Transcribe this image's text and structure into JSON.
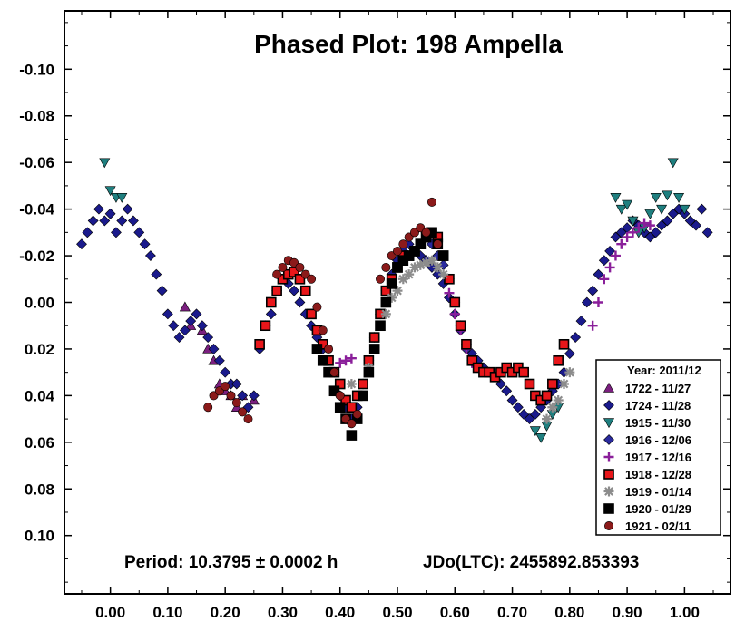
{
  "chart_data": {
    "type": "scatter",
    "title": "Phased Plot: 198 Ampella",
    "xlabel": "",
    "ylabel": "",
    "xlim": [
      -0.08,
      1.08
    ],
    "ylim": [
      -0.125,
      0.125
    ],
    "y_inverted": true,
    "grid": false,
    "x_ticks": [
      "0.00",
      "0.10",
      "0.20",
      "0.30",
      "0.40",
      "0.50",
      "0.60",
      "0.70",
      "0.80",
      "0.90",
      "1.00"
    ],
    "x_tick_values": [
      0.0,
      0.1,
      0.2,
      0.3,
      0.4,
      0.5,
      0.6,
      0.7,
      0.8,
      0.9,
      1.0
    ],
    "y_ticks": [
      "-0.10",
      "-0.08",
      "-0.06",
      "-0.04",
      "-0.02",
      "0.00",
      "0.02",
      "0.04",
      "0.06",
      "0.08",
      "0.10"
    ],
    "y_tick_values": [
      -0.1,
      -0.08,
      -0.06,
      -0.04,
      -0.02,
      0.0,
      0.02,
      0.04,
      0.06,
      0.08,
      0.1
    ],
    "annotations": {
      "period": "Period: 10.3795 ± 0.0002 h",
      "epoch": "JDo(LTC): 2455892.853393"
    },
    "legend": {
      "title": "Year: 2011/12",
      "placement": "lower-right"
    },
    "series": [
      {
        "name": "1722 - 11/27",
        "marker": "triangle",
        "color": "#7b1f7f",
        "x": [
          0.13,
          0.14,
          0.16,
          0.17,
          0.18,
          0.19,
          0.2,
          0.21,
          0.22,
          0.23,
          0.25
        ],
        "y": [
          0.002,
          0.01,
          0.012,
          0.02,
          0.025,
          0.035,
          0.038,
          0.04,
          0.045,
          0.04,
          0.042
        ]
      },
      {
        "name": "1724 - 11/28",
        "marker": "diamond",
        "color": "#1a1a8c",
        "x": [
          -0.05,
          -0.04,
          -0.03,
          -0.02,
          -0.01,
          0.0,
          0.01,
          0.02,
          0.03,
          0.04,
          0.05,
          0.06,
          0.07,
          0.08,
          0.09,
          0.1,
          0.11,
          0.12,
          0.13,
          0.14,
          0.15,
          0.16,
          0.17,
          0.18,
          0.19,
          0.2,
          0.21,
          0.22,
          0.23,
          0.24,
          0.25,
          0.26,
          0.27,
          0.28,
          0.29,
          0.3,
          0.31,
          0.32,
          0.33,
          0.34,
          0.35,
          0.36,
          0.37,
          0.38,
          0.39,
          0.4,
          0.41,
          0.42,
          0.43,
          0.44,
          0.45,
          0.46,
          0.47,
          0.48,
          0.49,
          0.5,
          0.51,
          0.52,
          0.53,
          0.54,
          0.55,
          0.56,
          0.57,
          0.58,
          0.59,
          0.6,
          0.61,
          0.62,
          0.63,
          0.64,
          0.65,
          0.66,
          0.67,
          0.68,
          0.69,
          0.7,
          0.71,
          0.72,
          0.73,
          0.74,
          0.75,
          0.76,
          0.77,
          0.78,
          0.79,
          0.8,
          0.81,
          0.82,
          0.83,
          0.84,
          0.85,
          0.86,
          0.87,
          0.88,
          0.89,
          0.9,
          0.91,
          0.92,
          0.93,
          0.94,
          0.95,
          0.96,
          0.97,
          0.98,
          0.99,
          1.0,
          1.01,
          1.02,
          1.03,
          1.04
        ],
        "y": [
          -0.025,
          -0.03,
          -0.035,
          -0.04,
          -0.035,
          -0.038,
          -0.03,
          -0.035,
          -0.04,
          -0.035,
          -0.03,
          -0.025,
          -0.02,
          -0.012,
          -0.005,
          0.005,
          0.01,
          0.015,
          0.012,
          0.008,
          0.005,
          0.01,
          0.015,
          0.02,
          0.025,
          0.03,
          0.035,
          0.035,
          0.04,
          0.045,
          0.04,
          0.02,
          0.01,
          0.005,
          -0.005,
          -0.01,
          -0.008,
          -0.005,
          0.0,
          0.005,
          0.01,
          0.015,
          0.02,
          0.025,
          0.03,
          0.04,
          0.045,
          0.05,
          0.045,
          0.035,
          0.025,
          0.015,
          0.005,
          -0.005,
          -0.012,
          -0.018,
          -0.022,
          -0.025,
          -0.022,
          -0.02,
          -0.018,
          -0.015,
          -0.012,
          -0.008,
          -0.002,
          0.005,
          0.012,
          0.018,
          0.022,
          0.025,
          0.028,
          0.03,
          0.032,
          0.035,
          0.038,
          0.042,
          0.045,
          0.048,
          0.05,
          0.048,
          0.045,
          0.042,
          0.038,
          0.035,
          0.03,
          0.022,
          0.015,
          0.008,
          0.0,
          -0.005,
          -0.012,
          -0.018,
          -0.022,
          -0.028,
          -0.03,
          -0.032,
          -0.035,
          -0.033,
          -0.03,
          -0.028,
          -0.03,
          -0.033,
          -0.035,
          -0.038,
          -0.04,
          -0.038,
          -0.035,
          -0.033,
          -0.04,
          -0.03
        ]
      },
      {
        "name": "1915 - 11/30",
        "marker": "triangle-down",
        "color": "#1f7f7f",
        "x": [
          -0.01,
          0.0,
          0.01,
          0.02,
          0.74,
          0.75,
          0.76,
          0.77,
          0.78,
          0.88,
          0.89,
          0.9,
          0.91,
          0.92,
          0.93,
          0.94,
          0.95,
          0.96,
          0.97,
          0.98,
          0.99,
          1.0
        ],
        "y": [
          -0.06,
          -0.048,
          -0.045,
          -0.045,
          0.055,
          0.058,
          0.053,
          0.048,
          0.045,
          -0.045,
          -0.04,
          -0.042,
          -0.035,
          -0.03,
          -0.032,
          -0.038,
          -0.045,
          -0.04,
          -0.046,
          -0.06,
          -0.045,
          -0.04
        ]
      },
      {
        "name": "1916 - 12/06",
        "marker": "diamond",
        "color": "#2a2a9e",
        "x": [
          0.55,
          0.56,
          0.57,
          0.58,
          0.59,
          0.6,
          0.61,
          0.62,
          0.63
        ],
        "y": [
          -0.03,
          -0.025,
          -0.02,
          -0.016,
          -0.01,
          0.0,
          0.01,
          0.02,
          0.025
        ]
      },
      {
        "name": "1917 - 12/16",
        "marker": "plus",
        "color": "#8a1f9a",
        "x": [
          0.4,
          0.41,
          0.42,
          0.59,
          0.6,
          0.61,
          0.62,
          0.63,
          0.84,
          0.85,
          0.86,
          0.87,
          0.88,
          0.89,
          0.9,
          0.91,
          0.92,
          0.93,
          0.94
        ],
        "y": [
          0.026,
          0.025,
          0.024,
          -0.004,
          0.005,
          0.012,
          0.02,
          0.026,
          0.01,
          0.0,
          -0.01,
          -0.015,
          -0.02,
          -0.025,
          -0.028,
          -0.03,
          -0.032,
          -0.034,
          -0.033
        ]
      },
      {
        "name": "1918 - 12/28",
        "marker": "square",
        "color": "#e8161a",
        "x": [
          0.26,
          0.27,
          0.28,
          0.29,
          0.3,
          0.31,
          0.32,
          0.33,
          0.34,
          0.35,
          0.36,
          0.37,
          0.38,
          0.39,
          0.4,
          0.41,
          0.42,
          0.43,
          0.44,
          0.45,
          0.46,
          0.47,
          0.48,
          0.49,
          0.5,
          0.51,
          0.52,
          0.53,
          0.54,
          0.55,
          0.56,
          0.57,
          0.58,
          0.59,
          0.6,
          0.61,
          0.62,
          0.63,
          0.64,
          0.65,
          0.66,
          0.67,
          0.68,
          0.69,
          0.7,
          0.71,
          0.72,
          0.73,
          0.74,
          0.75,
          0.76,
          0.77,
          0.78,
          0.79
        ],
        "y": [
          0.018,
          0.01,
          0.0,
          -0.005,
          -0.01,
          -0.012,
          -0.013,
          -0.01,
          -0.005,
          0.005,
          0.012,
          0.018,
          0.025,
          0.03,
          0.035,
          0.042,
          0.045,
          0.04,
          0.035,
          0.025,
          0.015,
          0.005,
          -0.005,
          -0.01,
          -0.015,
          -0.02,
          -0.02,
          -0.022,
          -0.025,
          -0.028,
          -0.03,
          -0.028,
          -0.02,
          -0.01,
          0.0,
          0.01,
          0.018,
          0.025,
          0.028,
          0.03,
          0.03,
          0.032,
          0.03,
          0.028,
          0.03,
          0.028,
          0.03,
          0.035,
          0.04,
          0.042,
          0.04,
          0.035,
          0.025,
          0.018
        ]
      },
      {
        "name": "1919 - 01/14",
        "marker": "asterisk",
        "color": "#8c8c8c",
        "x": [
          0.42,
          0.44,
          0.45,
          0.46,
          0.47,
          0.48,
          0.49,
          0.5,
          0.51,
          0.52,
          0.53,
          0.54,
          0.55,
          0.56,
          0.57,
          0.58,
          0.76,
          0.77,
          0.78,
          0.79,
          0.8
        ],
        "y": [
          0.035,
          0.04,
          0.028,
          0.02,
          0.01,
          0.005,
          -0.002,
          -0.005,
          -0.01,
          -0.012,
          -0.015,
          -0.016,
          -0.017,
          -0.018,
          -0.015,
          -0.012,
          0.05,
          0.045,
          0.042,
          0.035,
          0.03
        ]
      },
      {
        "name": "1920 - 01/29",
        "marker": "square",
        "color": "#000000",
        "x": [
          0.36,
          0.37,
          0.38,
          0.39,
          0.4,
          0.41,
          0.42,
          0.43,
          0.44,
          0.45,
          0.46,
          0.47,
          0.48,
          0.49,
          0.5,
          0.51,
          0.52,
          0.53,
          0.54,
          0.55,
          0.56,
          0.57,
          0.58
        ],
        "y": [
          0.02,
          0.025,
          0.03,
          0.038,
          0.045,
          0.05,
          0.057,
          0.05,
          0.04,
          0.03,
          0.02,
          0.01,
          0.0,
          -0.008,
          -0.015,
          -0.018,
          -0.02,
          -0.022,
          -0.025,
          -0.028,
          -0.03,
          -0.025,
          -0.02
        ]
      },
      {
        "name": "1921 - 02/11",
        "marker": "circle",
        "color": "#8b1a1a",
        "x": [
          0.17,
          0.18,
          0.19,
          0.2,
          0.21,
          0.22,
          0.23,
          0.24,
          0.29,
          0.3,
          0.31,
          0.32,
          0.33,
          0.34,
          0.35,
          0.36,
          0.37,
          0.38,
          0.39,
          0.4,
          0.41,
          0.42,
          0.43,
          0.47,
          0.48,
          0.49,
          0.5,
          0.51,
          0.52,
          0.53,
          0.54,
          0.55,
          0.56,
          0.57
        ],
        "y": [
          0.045,
          0.04,
          0.038,
          0.036,
          0.04,
          0.043,
          0.047,
          0.05,
          -0.012,
          -0.015,
          -0.018,
          -0.017,
          -0.015,
          -0.012,
          -0.01,
          0.002,
          0.012,
          0.02,
          0.03,
          0.04,
          0.05,
          0.052,
          0.048,
          -0.01,
          -0.015,
          -0.02,
          -0.022,
          -0.025,
          -0.028,
          -0.03,
          -0.032,
          -0.03,
          -0.043,
          -0.025
        ]
      }
    ]
  }
}
